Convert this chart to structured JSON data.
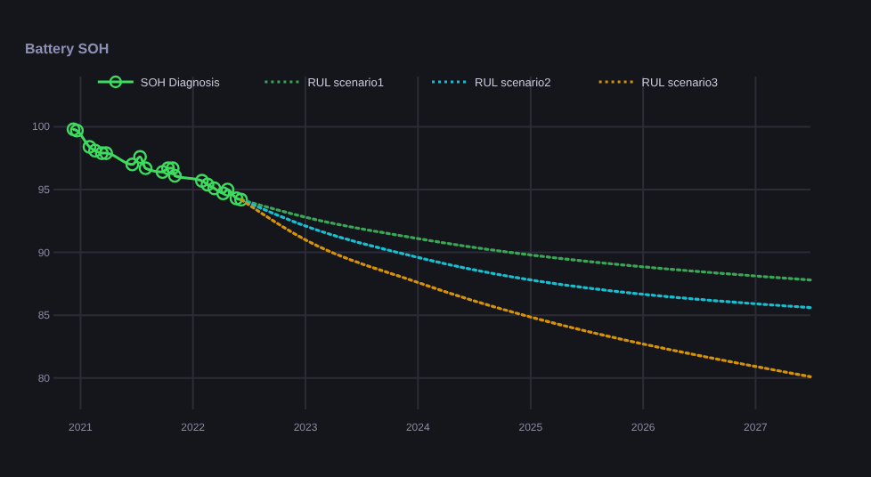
{
  "chart_data": {
    "type": "line",
    "title": "Battery SOH",
    "legend": "top",
    "grid": true,
    "xlim": [
      "2020-10-05",
      "2027-06-28"
    ],
    "ylim": [
      77.5,
      104
    ],
    "xticks": [
      {
        "value": "2021-01-01",
        "label": "2021"
      },
      {
        "value": "2022-01-01",
        "label": "2022"
      },
      {
        "value": "2023-01-01",
        "label": "2023"
      },
      {
        "value": "2024-01-01",
        "label": "2024"
      },
      {
        "value": "2025-01-01",
        "label": "2025"
      },
      {
        "value": "2026-01-01",
        "label": "2026"
      },
      {
        "value": "2027-01-01",
        "label": "2027"
      }
    ],
    "yticks": [
      80,
      85,
      90,
      95,
      100
    ],
    "series": [
      {
        "name": "SOH Diagnosis",
        "color": "#3ddc5f",
        "marker": "circle",
        "line_style": "solid",
        "x": [
          "2020-12-09",
          "2020-12-20",
          "2021-01-30",
          "2021-02-17",
          "2021-03-11",
          "2021-03-25",
          "2021-06-18",
          "2021-07-13",
          "2021-07-31",
          "2021-09-24",
          "2021-10-12",
          "2021-10-27",
          "2021-11-03",
          "2022-01-30",
          "2022-02-17",
          "2022-03-11",
          "2022-04-09",
          "2022-04-23",
          "2022-05-22",
          "2022-06-06"
        ],
        "values": [
          99.8,
          99.7,
          98.4,
          98.1,
          97.9,
          97.9,
          97.0,
          97.6,
          96.7,
          96.4,
          96.7,
          96.7,
          96.1,
          95.7,
          95.4,
          95.1,
          94.7,
          95.0,
          94.3,
          94.2
        ]
      },
      {
        "name": "RUL scenario1",
        "color": "#3aa655",
        "marker": "none",
        "line_style": "dotted",
        "x": [
          "2022-06-06",
          "2023-01-01",
          "2024-01-01",
          "2027-06-28"
        ],
        "values": [
          94.2,
          92.8,
          91.1,
          87.8
        ]
      },
      {
        "name": "RUL scenario2",
        "color": "#17becf",
        "marker": "none",
        "line_style": "dotted",
        "x": [
          "2022-06-06",
          "2023-01-01",
          "2024-01-01",
          "2027-06-28"
        ],
        "values": [
          94.2,
          92.1,
          89.6,
          85.6
        ]
      },
      {
        "name": "RUL scenario3",
        "color": "#d4920a",
        "marker": "none",
        "line_style": "dotted",
        "x": [
          "2022-06-06",
          "2023-01-01",
          "2024-01-01",
          "2027-06-28"
        ],
        "values": [
          94.2,
          91.0,
          87.6,
          80.1
        ]
      }
    ]
  }
}
